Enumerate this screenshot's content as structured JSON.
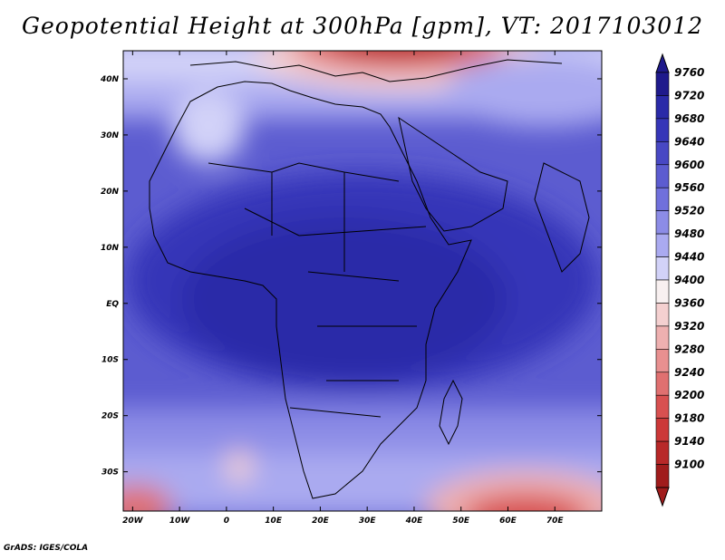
{
  "title": "Geopotential Height at 300hPa [gpm], VT: 2017103012",
  "footer": "GrADS: IGES/COLA",
  "map": {
    "lon_range": [
      -22,
      80
    ],
    "lat_range": [
      -37,
      45
    ],
    "lon_ticks": [
      {
        "value": -20,
        "label": "20W"
      },
      {
        "value": -10,
        "label": "10W"
      },
      {
        "value": 0,
        "label": "0"
      },
      {
        "value": 10,
        "label": "10E"
      },
      {
        "value": 20,
        "label": "20E"
      },
      {
        "value": 30,
        "label": "30E"
      },
      {
        "value": 40,
        "label": "40E"
      },
      {
        "value": 50,
        "label": "50E"
      },
      {
        "value": 60,
        "label": "60E"
      },
      {
        "value": 70,
        "label": "70E"
      }
    ],
    "lat_ticks": [
      {
        "value": 40,
        "label": "40N"
      },
      {
        "value": 30,
        "label": "30N"
      },
      {
        "value": 20,
        "label": "20N"
      },
      {
        "value": 10,
        "label": "10N"
      },
      {
        "value": 0,
        "label": "EQ"
      },
      {
        "value": -10,
        "label": "10S"
      },
      {
        "value": -20,
        "label": "20S"
      },
      {
        "value": -30,
        "label": "30S"
      }
    ]
  },
  "colorbar": {
    "levels": [
      {
        "label": "9760",
        "color": "#1f1a8c"
      },
      {
        "label": "9720",
        "color": "#2a2aa8"
      },
      {
        "label": "9680",
        "color": "#3636b8"
      },
      {
        "label": "9640",
        "color": "#4848c4"
      },
      {
        "label": "9600",
        "color": "#5c5cd0"
      },
      {
        "label": "9560",
        "color": "#7070dc"
      },
      {
        "label": "9520",
        "color": "#8c8ce6"
      },
      {
        "label": "9480",
        "color": "#aaaaf0"
      },
      {
        "label": "9440",
        "color": "#d2d2f8"
      },
      {
        "label": "9400",
        "color": "#f8f0f0"
      },
      {
        "label": "9360",
        "color": "#f4d0d0"
      },
      {
        "label": "9320",
        "color": "#eeb0b0"
      },
      {
        "label": "9280",
        "color": "#e89090"
      },
      {
        "label": "9240",
        "color": "#e07070"
      },
      {
        "label": "9200",
        "color": "#d85050"
      },
      {
        "label": "9180",
        "color": "#cc3838"
      },
      {
        "label": "9140",
        "color": "#b82828"
      },
      {
        "label": "9100",
        "color": "#a01c1c"
      }
    ]
  }
}
